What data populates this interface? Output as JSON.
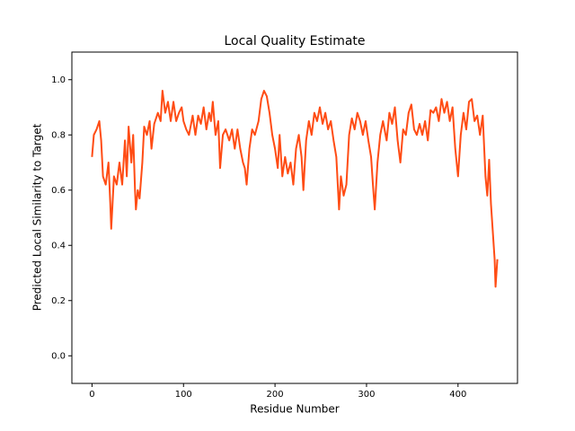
{
  "chart_data": {
    "type": "line",
    "title": "Local Quality Estimate",
    "x_label": "Residue Number",
    "y_label": "Predicted Local Similarity to Target",
    "xlim": [
      -22,
      465
    ],
    "ylim": [
      -0.1,
      1.1
    ],
    "xticks": [
      0,
      100,
      200,
      300,
      400
    ],
    "yticks": [
      {
        "value": 0,
        "label": "0.0"
      },
      0.2,
      0.4,
      0.6,
      0.8,
      {
        "value": 1,
        "label": "1.0"
      }
    ],
    "series": [
      {
        "color": "#ff4c14",
        "x": [
          0,
          2,
          5,
          8,
          10,
          12,
          15,
          18,
          20,
          21,
          24,
          27,
          30,
          33,
          36,
          38,
          40,
          43,
          45,
          47,
          48,
          50,
          52,
          55,
          57,
          60,
          63,
          65,
          68,
          72,
          75,
          77,
          80,
          83,
          86,
          89,
          92,
          95,
          98,
          100,
          103,
          106,
          110,
          113,
          116,
          119,
          122,
          125,
          128,
          130,
          132,
          135,
          138,
          140,
          143,
          146,
          150,
          153,
          156,
          159,
          162,
          165,
          167,
          169,
          172,
          175,
          178,
          182,
          185,
          188,
          191,
          194,
          197,
          200,
          203,
          205,
          208,
          211,
          214,
          217,
          220,
          223,
          226,
          229,
          231,
          234,
          237,
          240,
          243,
          246,
          249,
          252,
          255,
          258,
          261,
          264,
          267,
          270,
          272,
          275,
          278,
          281,
          284,
          287,
          290,
          293,
          296,
          299,
          302,
          305,
          307,
          309,
          312,
          315,
          318,
          322,
          325,
          328,
          331,
          334,
          337,
          340,
          343,
          346,
          349,
          352,
          355,
          358,
          361,
          364,
          367,
          370,
          373,
          376,
          379,
          382,
          385,
          388,
          391,
          394,
          397,
          400,
          403,
          406,
          409,
          412,
          415,
          418,
          421,
          424,
          427,
          430,
          432,
          434,
          436,
          438,
          440,
          441,
          443
        ],
        "values": [
          0.72,
          0.8,
          0.82,
          0.85,
          0.78,
          0.65,
          0.62,
          0.7,
          0.55,
          0.46,
          0.65,
          0.62,
          0.7,
          0.62,
          0.78,
          0.65,
          0.83,
          0.7,
          0.8,
          0.6,
          0.53,
          0.6,
          0.57,
          0.7,
          0.83,
          0.8,
          0.85,
          0.75,
          0.84,
          0.88,
          0.85,
          0.96,
          0.88,
          0.92,
          0.85,
          0.92,
          0.85,
          0.88,
          0.9,
          0.85,
          0.82,
          0.8,
          0.87,
          0.8,
          0.87,
          0.84,
          0.9,
          0.82,
          0.88,
          0.85,
          0.92,
          0.8,
          0.85,
          0.68,
          0.8,
          0.82,
          0.78,
          0.82,
          0.75,
          0.82,
          0.75,
          0.7,
          0.68,
          0.62,
          0.75,
          0.82,
          0.8,
          0.85,
          0.93,
          0.96,
          0.94,
          0.88,
          0.8,
          0.75,
          0.68,
          0.8,
          0.65,
          0.72,
          0.66,
          0.7,
          0.62,
          0.75,
          0.8,
          0.72,
          0.6,
          0.78,
          0.85,
          0.8,
          0.88,
          0.85,
          0.9,
          0.84,
          0.88,
          0.82,
          0.85,
          0.78,
          0.72,
          0.53,
          0.65,
          0.58,
          0.62,
          0.8,
          0.86,
          0.82,
          0.88,
          0.85,
          0.8,
          0.85,
          0.78,
          0.72,
          0.62,
          0.53,
          0.7,
          0.8,
          0.85,
          0.78,
          0.88,
          0.84,
          0.9,
          0.78,
          0.7,
          0.82,
          0.8,
          0.88,
          0.91,
          0.82,
          0.8,
          0.84,
          0.8,
          0.85,
          0.78,
          0.89,
          0.88,
          0.9,
          0.85,
          0.93,
          0.88,
          0.92,
          0.85,
          0.9,
          0.75,
          0.65,
          0.8,
          0.88,
          0.82,
          0.92,
          0.93,
          0.85,
          0.87,
          0.8,
          0.87,
          0.65,
          0.58,
          0.71,
          0.55,
          0.45,
          0.35,
          0.25,
          0.35
        ]
      }
    ]
  }
}
